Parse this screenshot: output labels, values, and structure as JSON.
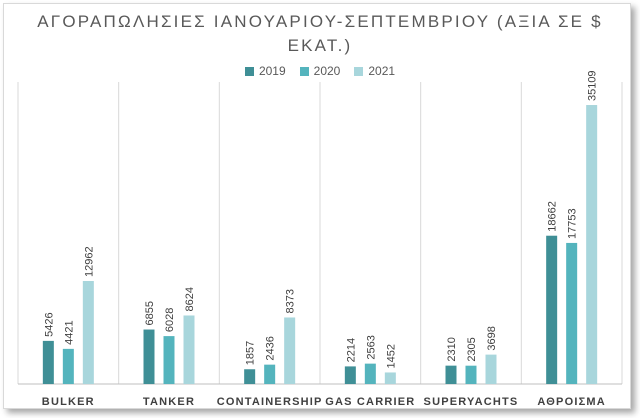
{
  "chart_data": {
    "type": "bar",
    "title_line1": "ΑΓΟΡΑΠΩΛΗΣΙΕΣ ΙΑΝΟΥΑΡΙΟΥ-ΣΕΠΤΕΜΒΡΙΟΥ (ΑΞΙΑ ΣΕ $",
    "title_line2": "ΕΚΑΤ.)",
    "categories": [
      "BULKER",
      "TANKER",
      "CONTAINERSHIP",
      "GAS CARRIER",
      "SUPERYACHTS",
      "ΑΘΡΟΙΣΜΑ"
    ],
    "series": [
      {
        "name": "2019",
        "color": "#3f8f96",
        "values": [
          5426,
          6855,
          1857,
          2214,
          2310,
          18662
        ]
      },
      {
        "name": "2020",
        "color": "#54b4bd",
        "values": [
          4421,
          6028,
          2436,
          2563,
          2305,
          17753
        ]
      },
      {
        "name": "2021",
        "color": "#a8d6dc",
        "values": [
          12962,
          8624,
          8373,
          1452,
          3698,
          35109
        ]
      }
    ],
    "ylim": [
      0,
      40000
    ],
    "grid": false,
    "legend_position": "top"
  }
}
